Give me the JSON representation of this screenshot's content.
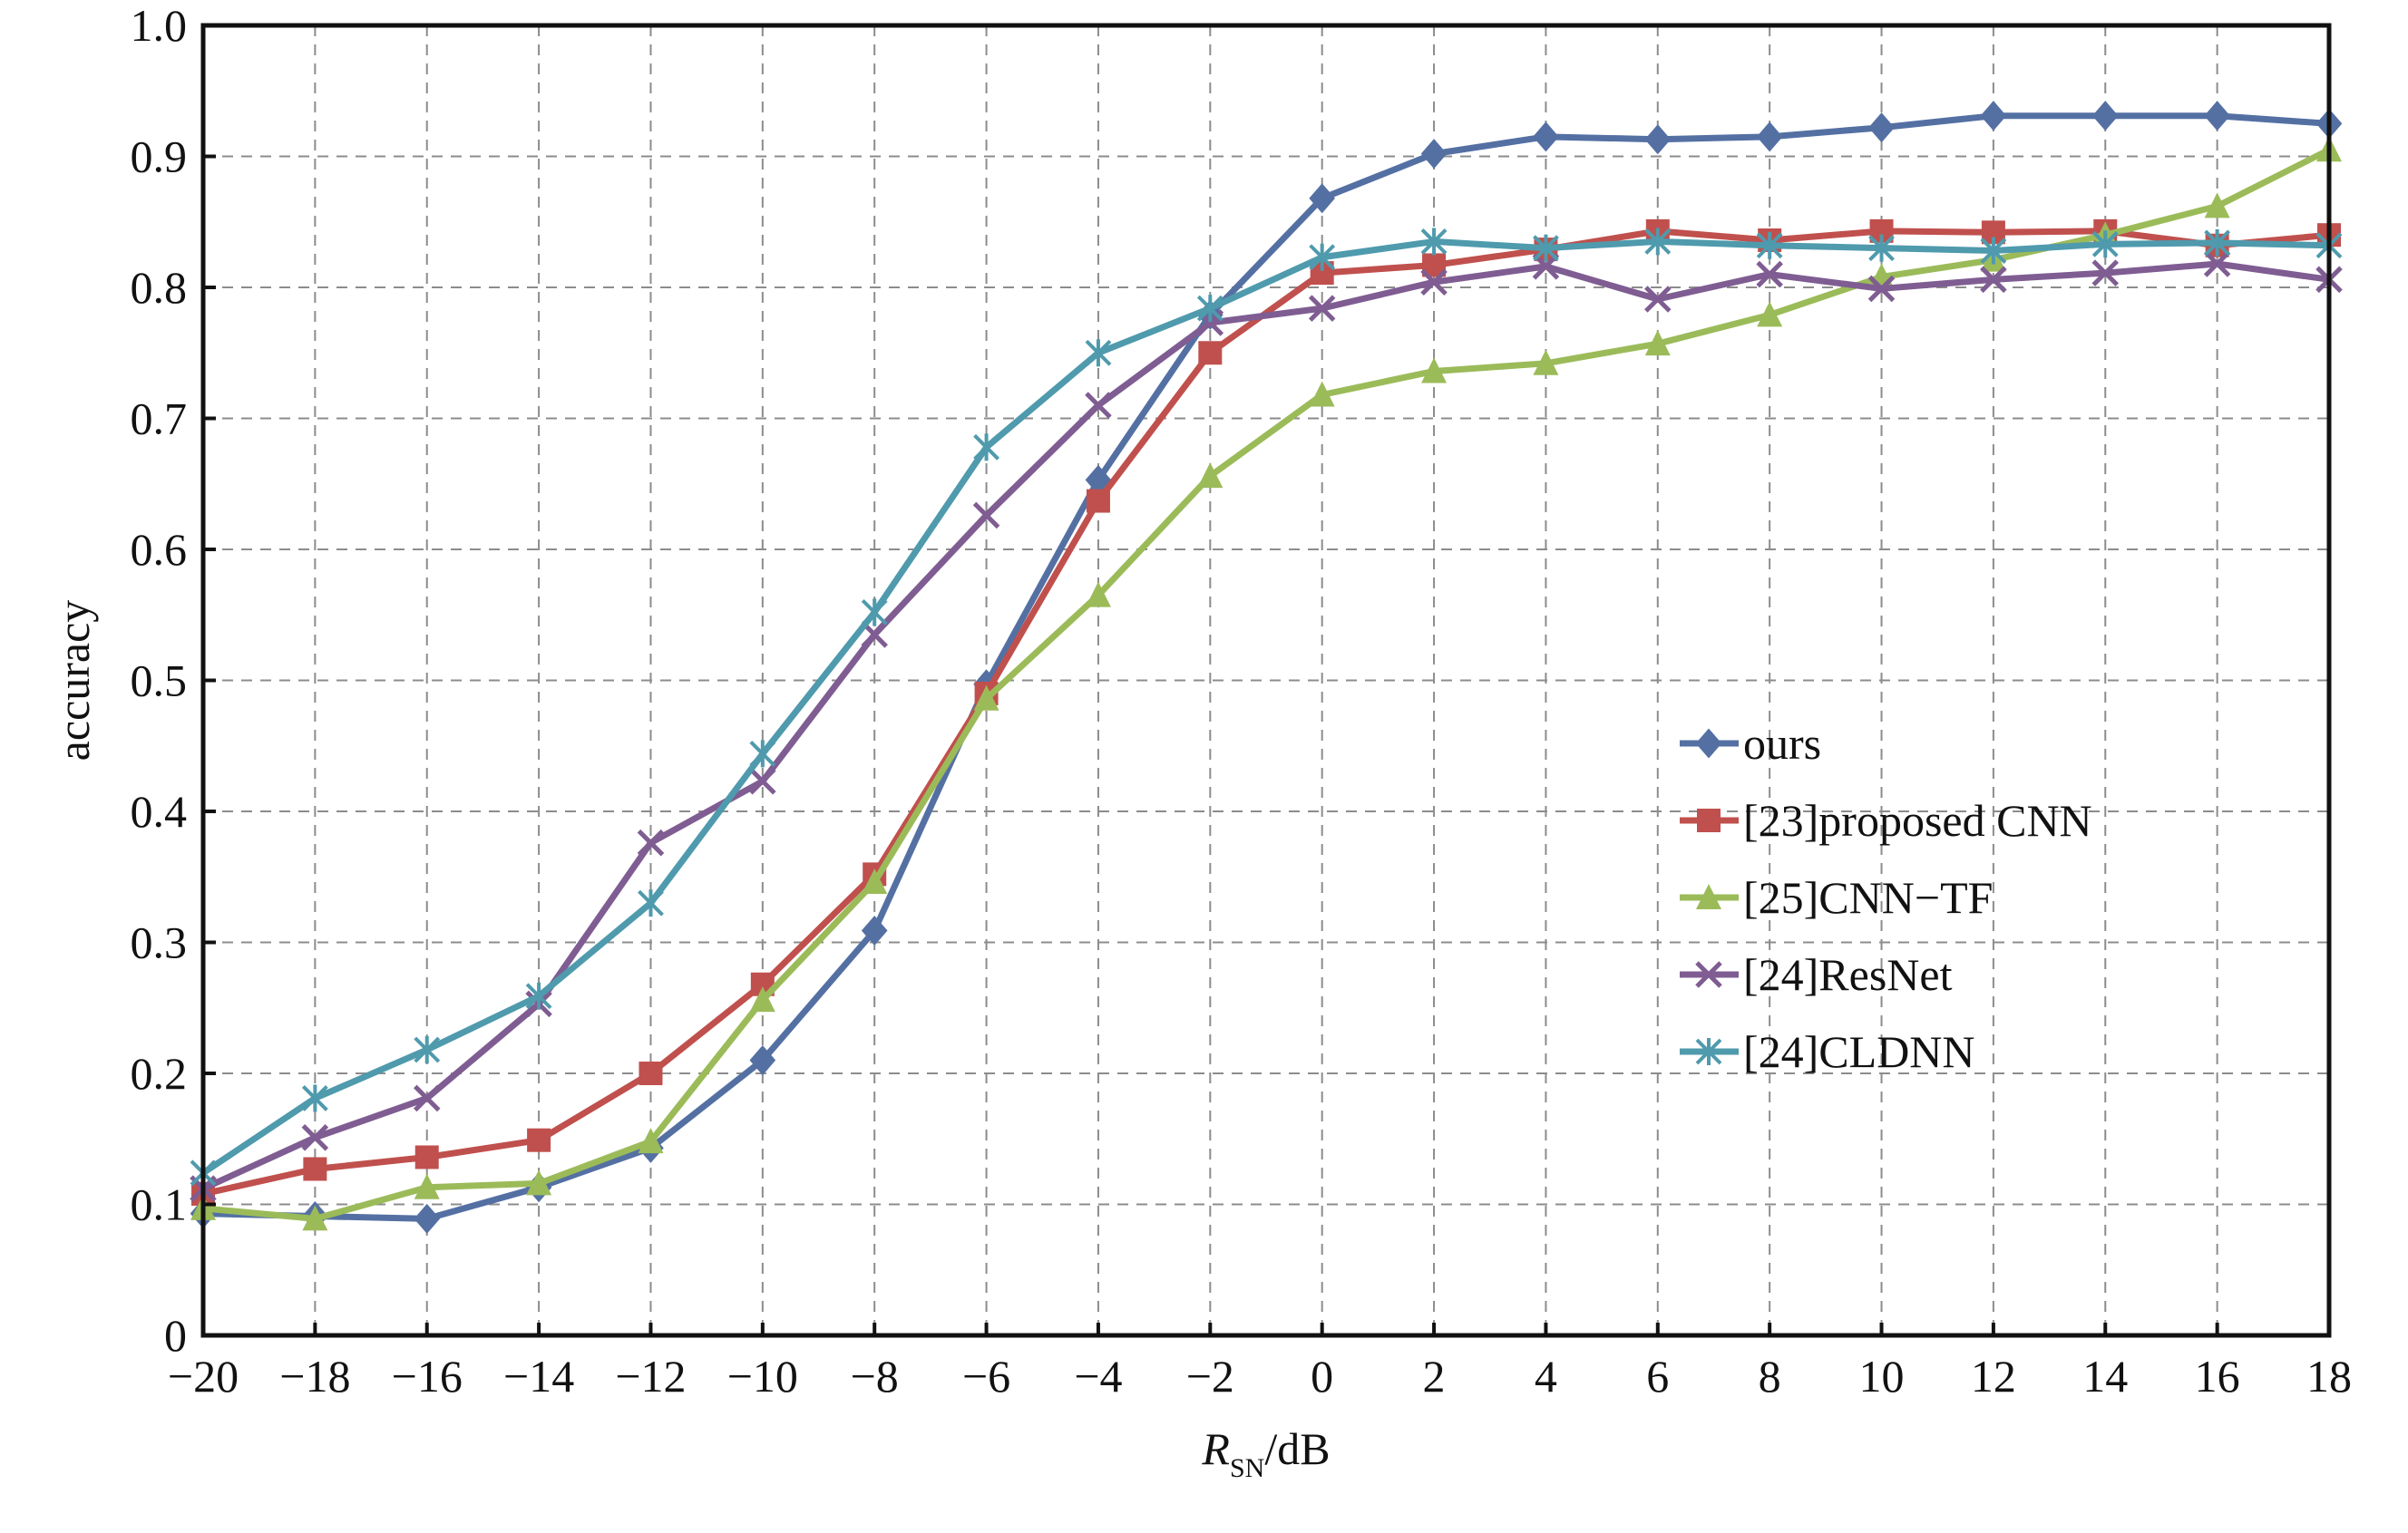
{
  "chart_data": {
    "type": "line",
    "xlabel_main": "R",
    "xlabel_sub": "SN",
    "xlabel_unit": "/dB",
    "ylabel": "accuracy",
    "xlim": [
      -20,
      18
    ],
    "ylim": [
      0,
      1.0
    ],
    "x": [
      -20,
      -18,
      -16,
      -14,
      -12,
      -10,
      -8,
      -6,
      -4,
      -2,
      0,
      2,
      4,
      6,
      8,
      10,
      12,
      14,
      16,
      18
    ],
    "x_tick_labels": [
      "−20",
      "−18",
      "−16",
      "−14",
      "−12",
      "−10",
      "−8",
      "−6",
      "−4",
      "−2",
      "0",
      "2",
      "4",
      "6",
      "8",
      "10",
      "12",
      "14",
      "16",
      "18"
    ],
    "y_ticks": [
      0,
      0.1,
      0.2,
      0.3,
      0.4,
      0.5,
      0.6,
      0.7,
      0.8,
      0.9,
      1.0
    ],
    "y_tick_labels": [
      "0",
      "0.1",
      "0.2",
      "0.3",
      "0.4",
      "0.5",
      "0.6",
      "0.7",
      "0.8",
      "0.9",
      "1.0"
    ],
    "grid": true,
    "legend_position": "right-middle",
    "series": [
      {
        "name": "ours",
        "color": "#5470a3",
        "marker": "diamond",
        "values": [
          0.093,
          0.091,
          0.089,
          0.113,
          0.143,
          0.21,
          0.309,
          0.497,
          0.653,
          0.779,
          0.868,
          0.902,
          0.915,
          0.913,
          0.915,
          0.922,
          0.931,
          0.931,
          0.931,
          0.925
        ]
      },
      {
        "name": "[23]proposed CNN",
        "color": "#c0504d",
        "marker": "square",
        "values": [
          0.108,
          0.127,
          0.136,
          0.149,
          0.2,
          0.268,
          0.352,
          0.49,
          0.637,
          0.75,
          0.811,
          0.817,
          0.829,
          0.843,
          0.836,
          0.843,
          0.842,
          0.843,
          0.832,
          0.84
        ]
      },
      {
        "name": "[25]CNN−TF",
        "color": "#9bbb59",
        "marker": "triangle",
        "values": [
          0.097,
          0.089,
          0.113,
          0.116,
          0.148,
          0.256,
          0.346,
          0.486,
          0.565,
          0.656,
          0.718,
          0.736,
          0.742,
          0.757,
          0.779,
          0.808,
          0.821,
          0.84,
          0.862,
          0.905
        ]
      },
      {
        "name": "[24]ResNet",
        "color": "#7f5d92",
        "marker": "x",
        "values": [
          0.112,
          0.151,
          0.181,
          0.253,
          0.376,
          0.423,
          0.535,
          0.626,
          0.71,
          0.773,
          0.784,
          0.804,
          0.816,
          0.791,
          0.81,
          0.799,
          0.806,
          0.811,
          0.818,
          0.806
        ]
      },
      {
        "name": "[24]CLDNN",
        "color": "#4f9aad",
        "marker": "star",
        "values": [
          0.124,
          0.181,
          0.218,
          0.259,
          0.33,
          0.444,
          0.552,
          0.678,
          0.75,
          0.784,
          0.823,
          0.835,
          0.83,
          0.835,
          0.832,
          0.83,
          0.828,
          0.833,
          0.834,
          0.832
        ]
      }
    ]
  }
}
